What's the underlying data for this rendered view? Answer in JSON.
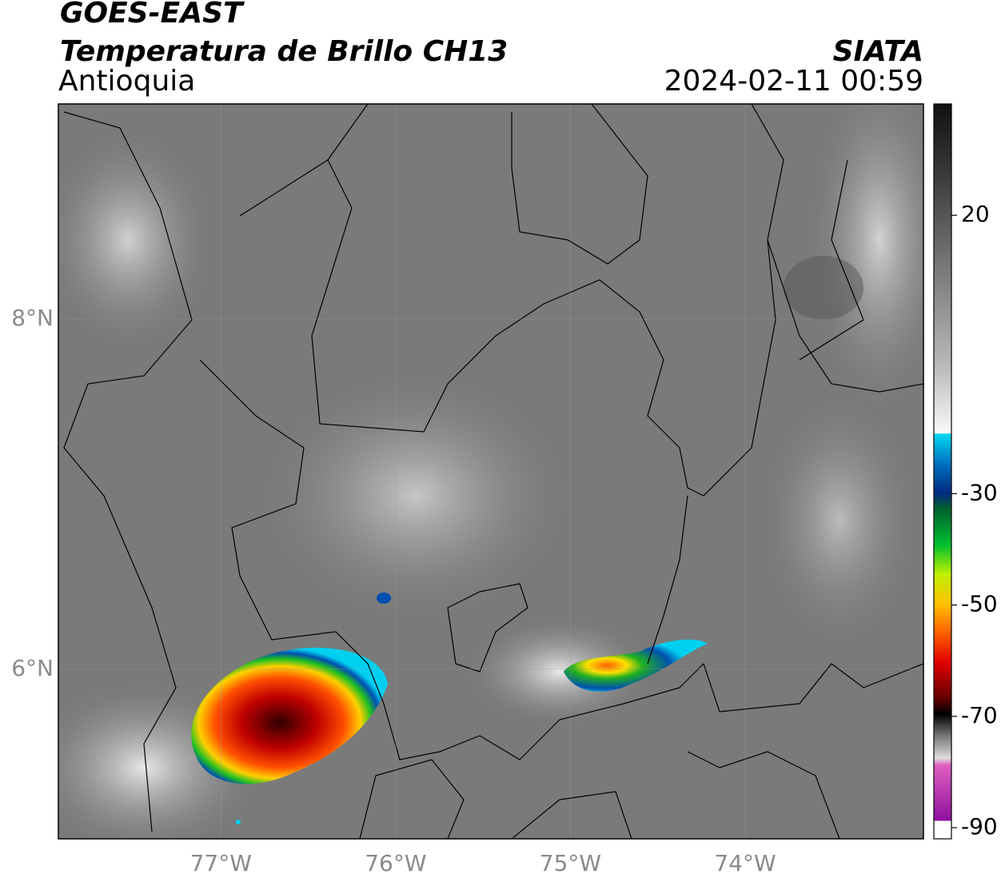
{
  "title": "GOES-EAST",
  "subtitle": "Temperatura de Brillo CH13",
  "region": "Antioquia",
  "source": "SIATA",
  "datetime": "2024-02-11 00:59",
  "map": {
    "xlim": [
      -77.93,
      -72.98
    ],
    "ylim": [
      5.03,
      9.23
    ],
    "lat_ticks": [
      {
        "value": 8,
        "label": "8°N"
      },
      {
        "value": 6,
        "label": "6°N"
      }
    ],
    "lon_ticks": [
      {
        "value": -77,
        "label": "77°W"
      },
      {
        "value": -76,
        "label": "76°W"
      },
      {
        "value": -75,
        "label": "75°W"
      },
      {
        "value": -74,
        "label": "74°W"
      }
    ]
  },
  "colorbar": {
    "lim": [
      -92,
      40
    ],
    "ticks": [
      20,
      -30,
      -50,
      -70,
      -90
    ]
  }
}
